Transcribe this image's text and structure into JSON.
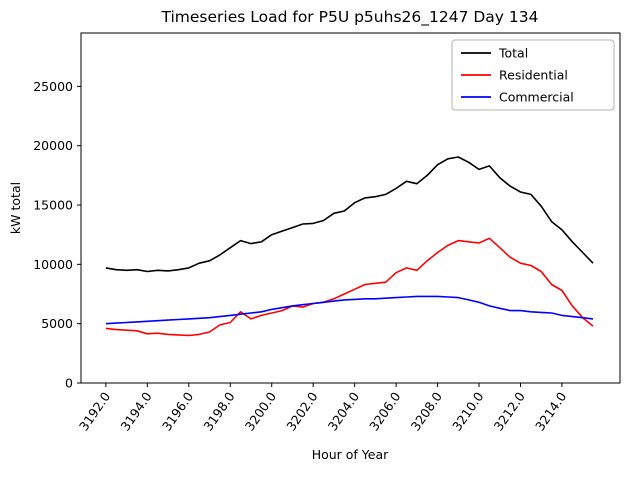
{
  "chart_data": {
    "type": "line",
    "title": "Timeseries Load for P5U p5uhs26_1247  Day 134",
    "xlabel": "Hour of Year",
    "ylabel": "kW total",
    "xlim": [
      3190.8,
      3216.8
    ],
    "ylim": [
      0,
      29500
    ],
    "xticks": [
      3192.0,
      3194.0,
      3196.0,
      3198.0,
      3200.0,
      3202.0,
      3204.0,
      3206.0,
      3208.0,
      3210.0,
      3212.0,
      3214.0
    ],
    "yticks": [
      0,
      5000,
      10000,
      15000,
      20000,
      25000
    ],
    "grid": false,
    "legend_position": "upper right",
    "x": [
      3192.0,
      3192.5,
      3193.0,
      3193.5,
      3194.0,
      3194.5,
      3195.0,
      3195.5,
      3196.0,
      3196.5,
      3197.0,
      3197.5,
      3198.0,
      3198.5,
      3199.0,
      3199.5,
      3200.0,
      3200.5,
      3201.0,
      3201.5,
      3202.0,
      3202.5,
      3203.0,
      3203.5,
      3204.0,
      3204.5,
      3205.0,
      3205.5,
      3206.0,
      3206.5,
      3207.0,
      3207.5,
      3208.0,
      3208.5,
      3209.0,
      3209.5,
      3210.0,
      3210.5,
      3211.0,
      3211.5,
      3212.0,
      3212.5,
      3213.0,
      3213.5,
      3214.0,
      3214.5,
      3215.0,
      3215.5
    ],
    "series": [
      {
        "name": "Total",
        "color": "#000000",
        "values": [
          9700,
          9550,
          9500,
          9550,
          9400,
          9500,
          9450,
          9550,
          9700,
          10100,
          10300,
          10800,
          11400,
          12000,
          11750,
          11900,
          12500,
          12800,
          13100,
          13400,
          13450,
          13700,
          14300,
          14500,
          15200,
          15600,
          15700,
          15900,
          16400,
          17000,
          16800,
          17500,
          18400,
          18900,
          19050,
          18600,
          18000,
          18300,
          17300,
          16600,
          16100,
          15900,
          14900,
          13600,
          12900,
          11900,
          11000,
          10100
        ]
      },
      {
        "name": "Residential",
        "color": "#ff0000",
        "values": [
          4600,
          4500,
          4450,
          4400,
          4150,
          4200,
          4100,
          4050,
          4000,
          4100,
          4300,
          4900,
          5100,
          6000,
          5400,
          5700,
          5900,
          6100,
          6500,
          6400,
          6700,
          6800,
          7100,
          7500,
          7900,
          8300,
          8400,
          8500,
          9300,
          9700,
          9500,
          10300,
          11000,
          11600,
          12000,
          11900,
          11800,
          12200,
          11400,
          10600,
          10100,
          9900,
          9400,
          8300,
          7800,
          6500,
          5500,
          4800
        ]
      },
      {
        "name": "Commercial",
        "color": "#0000ff",
        "values": [
          5000,
          5050,
          5100,
          5150,
          5200,
          5250,
          5300,
          5350,
          5400,
          5450,
          5500,
          5600,
          5700,
          5800,
          5900,
          6000,
          6200,
          6350,
          6500,
          6600,
          6700,
          6800,
          6900,
          7000,
          7050,
          7100,
          7100,
          7150,
          7200,
          7250,
          7300,
          7300,
          7300,
          7250,
          7200,
          7000,
          6800,
          6500,
          6300,
          6100,
          6100,
          6000,
          5950,
          5900,
          5700,
          5600,
          5500,
          5400
        ]
      }
    ]
  }
}
